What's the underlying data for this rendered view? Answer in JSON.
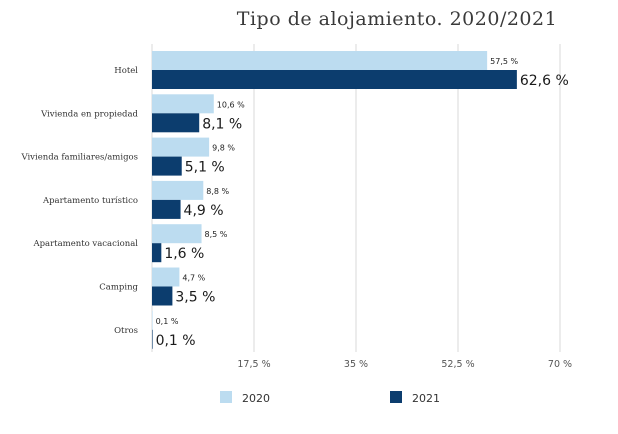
{
  "chart_data": {
    "type": "bar",
    "orientation": "horizontal",
    "title": "Tipo de alojamiento. 2020/2021",
    "categories": [
      "Hotel",
      "Vivienda en propiedad",
      "Vivienda familiares/amigos",
      "Apartamento turístico",
      "Apartamento vacacional",
      "Camping",
      "Otros"
    ],
    "series": [
      {
        "name": "2020",
        "color": "#bcdcf0",
        "values": [
          57.5,
          10.6,
          9.8,
          8.8,
          8.5,
          4.7,
          0.1
        ],
        "labels": [
          "57,5 %",
          "10,6 %",
          "9,8 %",
          "8,8 %",
          "8,5 %",
          "4,7 %",
          "0,1 %"
        ]
      },
      {
        "name": "2021",
        "color": "#0c3d6e",
        "values": [
          62.6,
          8.1,
          5.1,
          4.9,
          1.6,
          3.5,
          0.1
        ],
        "labels": [
          "62,6 %",
          "8,1 %",
          "5,1 %",
          "4,9 %",
          "1,6 %",
          "3,5 %",
          "0,1 %"
        ]
      }
    ],
    "xlim": [
      0,
      70
    ],
    "xticks": [
      17.5,
      35,
      52.5,
      70
    ],
    "xtick_labels": [
      "17,5 %",
      "35 %",
      "52,5 %",
      "70 %"
    ],
    "grid": true,
    "legend_position": "bottom"
  }
}
